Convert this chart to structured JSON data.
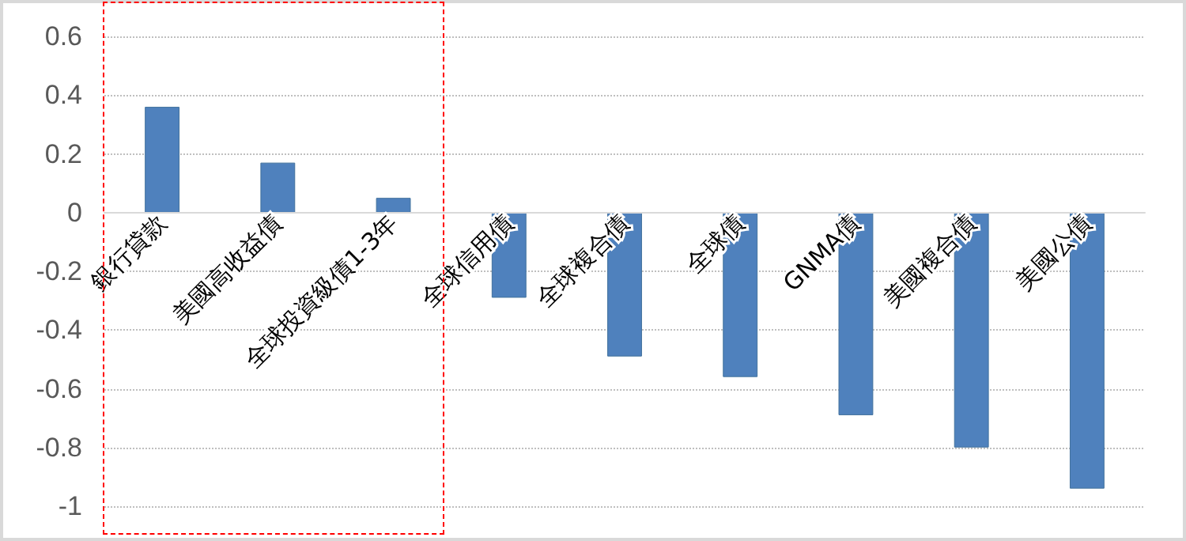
{
  "chart_data": {
    "type": "bar",
    "categories": [
      "銀行貸款",
      "美國高收益債",
      "全球投資級債1-3年",
      "全球信用債",
      "全球複合債",
      "全球債",
      "GNMA債",
      "美國複合債",
      "美國公債"
    ],
    "series": [
      {
        "color": "#4f81bd",
        "values": [
          0.36,
          0.17,
          0.05,
          -0.29,
          -0.49,
          -0.56,
          -0.69,
          -0.8,
          -0.94
        ]
      }
    ],
    "ylim": [
      -1,
      0.6
    ],
    "yticks": [
      -1,
      -0.8,
      -0.6,
      -0.4,
      -0.2,
      0,
      0.2,
      0.4,
      0.6
    ],
    "grid": "y"
  }
}
